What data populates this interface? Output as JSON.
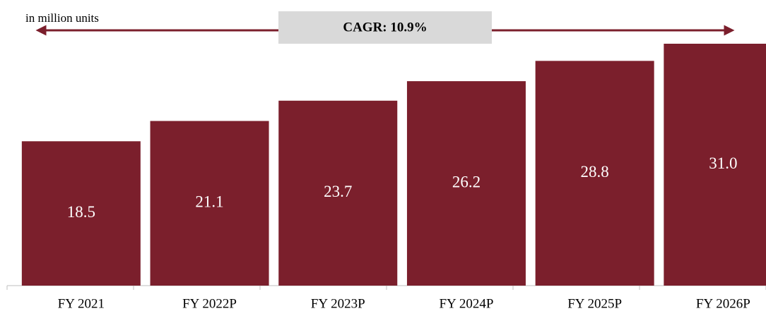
{
  "chart_data": {
    "type": "bar",
    "subtitle": "in million units",
    "annotation": "CAGR: 10.9%",
    "categories": [
      "FY 2021",
      "FY 2022P",
      "FY 2023P",
      "FY 2024P",
      "FY 2025P",
      "FY 2026P"
    ],
    "values": [
      18.5,
      21.1,
      23.7,
      26.2,
      28.8,
      31.0
    ],
    "value_labels": [
      "18.5",
      "21.1",
      "23.7",
      "26.2",
      "28.8",
      "31.0"
    ],
    "color": "#7b1f2c"
  }
}
